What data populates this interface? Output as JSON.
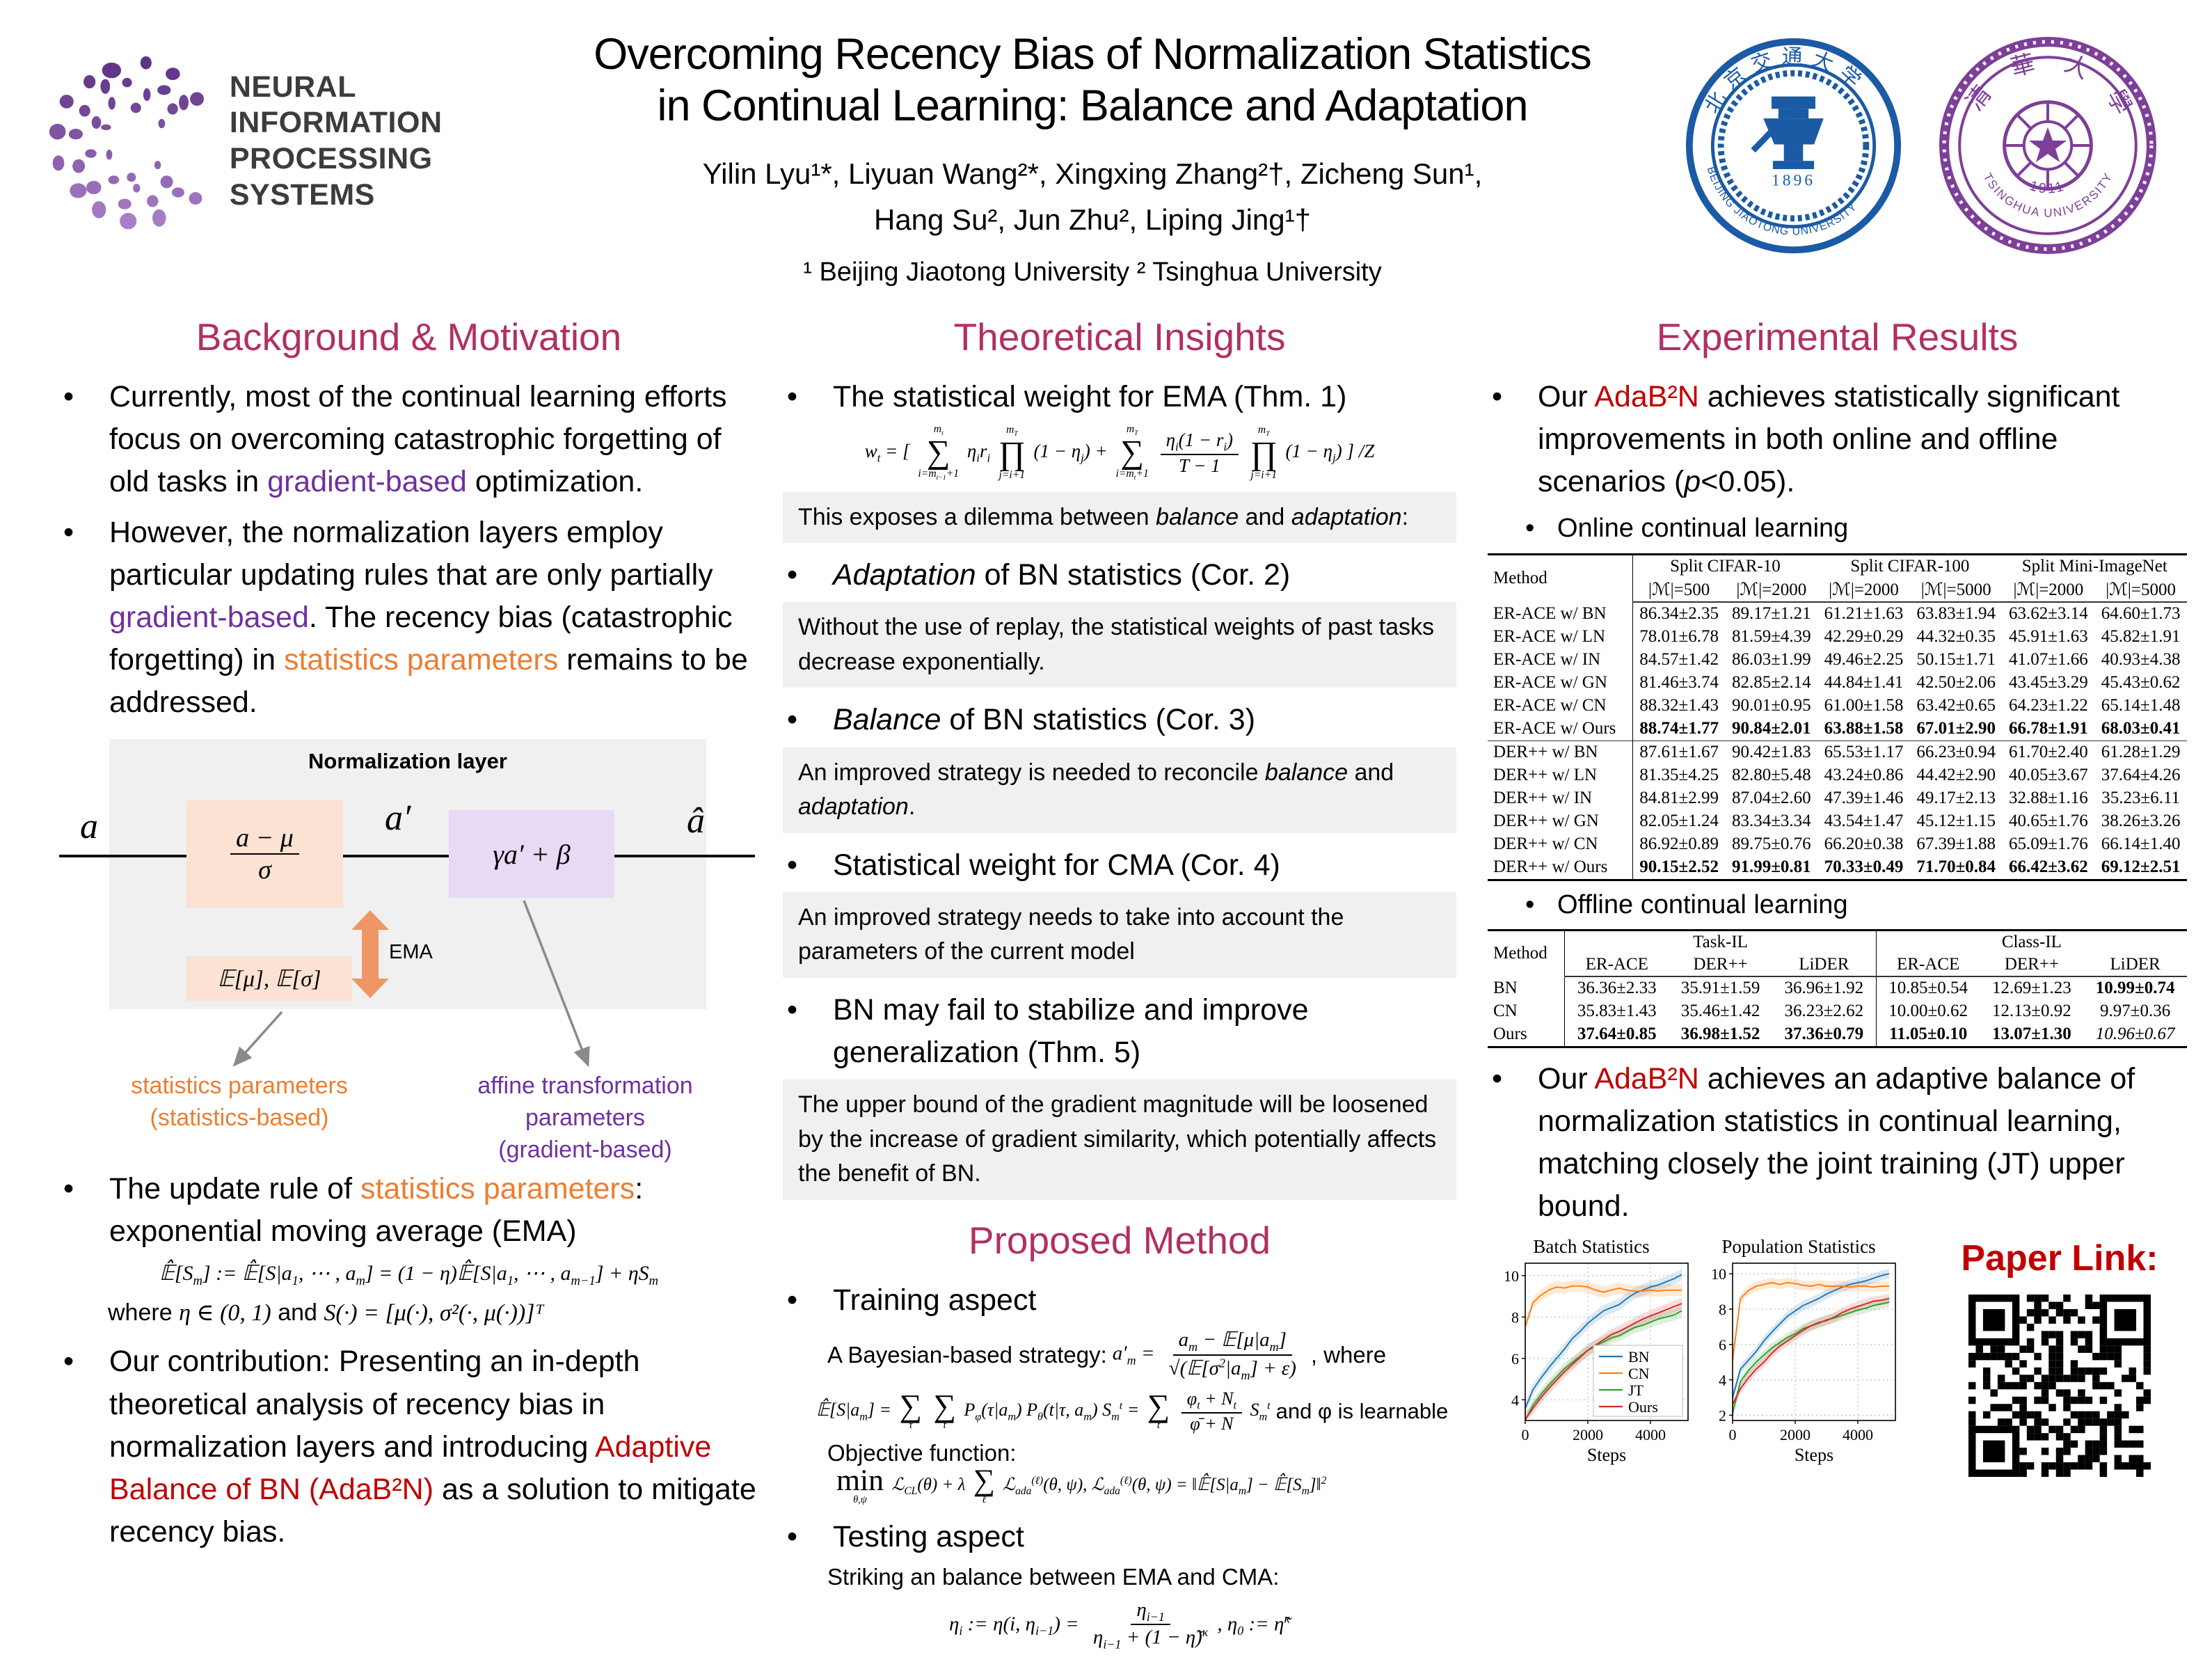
{
  "header": {
    "neurips": {
      "line1": "NEURAL INFORMATION",
      "line2": "PROCESSING SYSTEMS"
    },
    "title_line1": "Overcoming Recency Bias of Normalization Statistics",
    "title_line2": "in Continual Learning: Balance and Adaptation",
    "authors_line1": "Yilin Lyu¹*, Liyuan Wang²*, Xingxing Zhang²†, Zicheng Sun¹,",
    "authors_line2": "Hang Su², Jun Zhu², Liping Jing¹†",
    "affiliations": "¹ Beijing Jiaotong University   ² Tsinghua University",
    "seals": {
      "bjtu": {
        "zh": "北京交通大学",
        "en": "BEIJING  JIAOTONG  UNIVERSITY",
        "year": "1896"
      },
      "tsinghua": {
        "zh": "清 華 大 學",
        "en": "TSINGHUA  UNIVERSITY",
        "year": "~1911~"
      }
    }
  },
  "background": {
    "heading": "Background & Motivation",
    "bullet1": [
      {
        "t": "Currently, most of the continual learning efforts focus on overcoming catastrophic forgetting of old tasks in "
      },
      {
        "t": "gradient-based",
        "c": "purple"
      },
      {
        "t": " optimization."
      }
    ],
    "bullet2": [
      {
        "t": "However, the normalization layers employ particular updating rules that are only partially "
      },
      {
        "t": "gradient-based",
        "c": "purple"
      },
      {
        "t": ". The recency bias (catastrophic forgetting) in "
      },
      {
        "t": "statistics parameters",
        "c": "orange"
      },
      {
        "t": " remains to be addressed."
      }
    ],
    "diagram": {
      "title": "Normalization layer",
      "a": "a",
      "a_prime": "a′",
      "a_hat": "â",
      "norm_num": "a − μ",
      "norm_den": "σ",
      "affine": "γa′ + β",
      "ema": "EMA",
      "stats": "𝔼[μ], 𝔼[σ]",
      "label_stats_1": "statistics parameters",
      "label_stats_2": "(statistics-based)",
      "label_affine_1": "affine transformation parameters",
      "label_affine_2": "(gradient-based)"
    },
    "bullet3": [
      {
        "t": "The update rule of "
      },
      {
        "t": "statistics parameters",
        "c": "orange"
      },
      {
        "t": ": exponential moving average (EMA)"
      }
    ],
    "ema_formula": "𝔼̂[S_[m]] := 𝔼̂[S|a_[1], ⋯ , a_[m]] = (1 − η)𝔼̂[S|a_[1], ⋯ , a_[m−1]] + ηS_[m]",
    "where_line": [
      {
        "t": "where  "
      },
      {
        "t": "η ∈ (0, 1)",
        "m": true
      },
      {
        "t": "  and  "
      },
      {
        "t": "S(·) = [μ(·), σ²(·, μ(·))]ᵀ",
        "m": true
      }
    ],
    "bullet4": [
      {
        "t": "Our contribution: Presenting an in-depth theoretical analysis of recency bias in normalization layers and introducing "
      },
      {
        "t": "Adaptive Balance of BN (AdaB²N)",
        "c": "red"
      },
      {
        "t": " as a solution to mitigate recency bias."
      }
    ]
  },
  "theory": {
    "heading": "Theoretical Insights",
    "b1": [
      {
        "t": "The statistical weight for EMA (Thm. 1)"
      }
    ],
    "thm1": "w_[t] = [ \\op{∑}{i=m_[t−1]+1}{m_[t]} η_[i]r_[i] \\op{∏}{j=i+1}{m_[T]} (1 − η_[j]) + \\op{∑}{i=m_[t]+1}{m_[T]} \\frac{η_[i](1 − r_[i])}{T − 1} \\op{∏}{j=i+1}{m_[T]} (1 − η_[j]) ] /Z",
    "box1": [
      {
        "t": "This exposes a dilemma between "
      },
      {
        "t": "balance",
        "i": true
      },
      {
        "t": " and "
      },
      {
        "t": "adaptation",
        "i": true
      },
      {
        "t": ":"
      }
    ],
    "b2": [
      {
        "t": "Adaptation",
        "i": true
      },
      {
        "t": " of BN statistics (Cor. 2)"
      }
    ],
    "box2": [
      {
        "t": "Without the use of replay, the statistical weights of past tasks decrease exponentially."
      }
    ],
    "b3": [
      {
        "t": "Balance",
        "i": true
      },
      {
        "t": " of BN statistics (Cor. 3)"
      }
    ],
    "box3": [
      {
        "t": "An improved strategy is needed to reconcile "
      },
      {
        "t": "balance",
        "i": true
      },
      {
        "t": " and "
      },
      {
        "t": "adaptation",
        "i": true
      },
      {
        "t": "."
      }
    ],
    "b4": [
      {
        "t": "Statistical weight for CMA (Cor. 4)"
      }
    ],
    "box4": [
      {
        "t": "An improved strategy needs to take into account the parameters of the current model"
      }
    ],
    "b5": [
      {
        "t": "BN may fail to stabilize and improve generalization (Thm. 5)"
      }
    ],
    "box5": [
      {
        "t": "The upper bound of the gradient magnitude will be loosened by the increase of gradient similarity, which potentially affects the benefit of BN."
      }
    ]
  },
  "method": {
    "heading": "Proposed Method",
    "b1": [
      {
        "t": "Training aspect"
      }
    ],
    "bayes_label": "A Bayesian-based strategy:",
    "bayes_formula": "a′_[m] = \\frac{a_[m] − 𝔼[μ|a_[m]]}{√(𝔼[σ^[2]|a_[m]] + ε)}",
    "bayes_suffix": ", where",
    "expect_formula": "𝔼̂[S|a_[m]] = \\op{∑}{τ}{} \\op{∑}{t}{} P_[φ](τ|a_[m]) P_[θ](t|τ, a_[m]) S_[m]^[t] = \\op{∑}{t}{} \\frac{φ_[t] + N_[t]}{φ̄ + N} S_[m]^[t]",
    "expect_suffix": "and φ is learnable",
    "objective_label": "Objective function:",
    "objective_formula": "\\op{min}{θ,ψ}{} ℒ_[CL](θ) + λ \\op{∑}{ℓ}{} ℒ_[ada]^[(ℓ)](θ, ψ),   ℒ_[ada]^[(ℓ)](θ, ψ) = ‖𝔼̂[S|a_[m]] − 𝔼̂[S_[m]]‖^[2]",
    "b2": [
      {
        "t": "Testing aspect"
      }
    ],
    "testing_label": "Striking an balance between EMA and CMA:",
    "testing_formula": "η_[i] := η(i, η_[i−1]) = \\frac{η_[i−1]}{η_[i−1] + (1 − η̃)^[κ]},    η_[0] := η̃^[κ]"
  },
  "experiments": {
    "heading": "Experimental Results",
    "b1": [
      {
        "t": "Our "
      },
      {
        "t": "AdaB²N",
        "c": "red"
      },
      {
        "t": " achieves statistically significant improvements in both online and offline scenarios ("
      },
      {
        "t": "p",
        "i": true
      },
      {
        "t": "<0.05)."
      }
    ],
    "sub1": "Online continual learning",
    "table1": {
      "col_method": "Method",
      "groups": [
        "Split CIFAR-10",
        "Split CIFAR-100",
        "Split Mini-ImageNet"
      ],
      "subheads": [
        "|ℳ|=500",
        "|ℳ|=2000",
        "|ℳ|=2000",
        "|ℳ|=5000",
        "|ℳ|=2000",
        "|ℳ|=5000"
      ],
      "rows": [
        {
          "method": "ER-ACE w/ BN",
          "vals": [
            "86.34±2.35",
            "89.17±1.21",
            "61.21±1.63",
            "63.83±1.94",
            "63.62±3.14",
            "64.60±1.73"
          ]
        },
        {
          "method": "ER-ACE w/ LN",
          "vals": [
            "78.01±6.78",
            "81.59±4.39",
            "42.29±0.29",
            "44.32±0.35",
            "45.91±1.63",
            "45.82±1.91"
          ]
        },
        {
          "method": "ER-ACE w/ IN",
          "vals": [
            "84.57±1.42",
            "86.03±1.99",
            "49.46±2.25",
            "50.15±1.71",
            "41.07±1.66",
            "40.93±4.38"
          ]
        },
        {
          "method": "ER-ACE w/ GN",
          "vals": [
            "81.46±3.74",
            "82.85±2.14",
            "44.84±1.41",
            "42.50±2.06",
            "43.45±3.29",
            "45.43±0.62"
          ]
        },
        {
          "method": "ER-ACE w/ CN",
          "vals": [
            "88.32±1.43",
            "90.01±0.95",
            "61.00±1.58",
            "63.42±0.65",
            "64.23±1.22",
            "65.14±1.48"
          ]
        },
        {
          "method": "ER-ACE w/ Ours",
          "bold": true,
          "vals": [
            "88.74±1.77",
            "90.84±2.01",
            "63.88±1.58",
            "67.01±2.90",
            "66.78±1.91",
            "68.03±0.41"
          ]
        },
        {
          "method": "DER++ w/ BN",
          "sep": true,
          "vals": [
            "87.61±1.67",
            "90.42±1.83",
            "65.53±1.17",
            "66.23±0.94",
            "61.70±2.40",
            "61.28±1.29"
          ]
        },
        {
          "method": "DER++ w/ LN",
          "vals": [
            "81.35±4.25",
            "82.80±5.48",
            "43.24±0.86",
            "44.42±2.90",
            "40.05±3.67",
            "37.64±4.26"
          ]
        },
        {
          "method": "DER++ w/ IN",
          "vals": [
            "84.81±2.99",
            "87.04±2.60",
            "47.39±1.46",
            "49.17±2.13",
            "32.88±1.16",
            "35.23±6.11"
          ]
        },
        {
          "method": "DER++ w/ GN",
          "vals": [
            "82.05±1.24",
            "83.34±3.34",
            "43.54±1.47",
            "45.12±1.15",
            "40.65±1.76",
            "38.26±3.26"
          ]
        },
        {
          "method": "DER++ w/ CN",
          "vals": [
            "86.92±0.89",
            "89.75±0.76",
            "66.20±0.38",
            "67.39±1.88",
            "65.09±1.76",
            "66.14±1.40"
          ]
        },
        {
          "method": "DER++ w/ Ours",
          "bold": true,
          "vals": [
            "90.15±2.52",
            "91.99±0.81",
            "70.33±0.49",
            "71.70±0.84",
            "66.42±3.62",
            "69.12±2.51"
          ]
        }
      ]
    },
    "sub2": "Offline continual learning",
    "table2": {
      "col_method": "Method",
      "groups": [
        "Task-IL",
        "Class-IL"
      ],
      "subheads": [
        "ER-ACE",
        "DER++",
        "LiDER",
        "ER-ACE",
        "DER++",
        "LiDER"
      ],
      "rows": [
        {
          "method": "BN",
          "vals": [
            "36.36±2.33",
            "35.91±1.59",
            "36.96±1.92",
            "10.85±0.54",
            "12.69±1.23",
            {
              "v": "10.99±0.74",
              "b": true
            }
          ]
        },
        {
          "method": "CN",
          "vals": [
            "35.83±1.43",
            "35.46±1.42",
            "36.23±2.62",
            "10.00±0.62",
            "12.13±0.92",
            "9.97±0.36"
          ]
        },
        {
          "method": "Ours",
          "vals": [
            {
              "v": "37.64±0.85",
              "b": true
            },
            {
              "v": "36.98±1.52",
              "b": true
            },
            {
              "v": "37.36±0.79",
              "b": true
            },
            {
              "v": "11.05±0.10",
              "b": true
            },
            {
              "v": "13.07±1.30",
              "b": true
            },
            {
              "v": "10.96±0.67",
              "i": true
            }
          ]
        }
      ]
    },
    "b2": [
      {
        "t": "Our "
      },
      {
        "t": "AdaB²N",
        "c": "red"
      },
      {
        "t": " achieves an adaptive balance of normalization statistics in continual learning, matching closely the joint training (JT) upper bound."
      }
    ],
    "paper_link": "Paper Link:"
  },
  "chart_data": [
    {
      "type": "line",
      "title": "Batch Statistics",
      "xlabel": "Steps",
      "x": [
        0,
        250,
        500,
        750,
        1000,
        1250,
        1500,
        1750,
        2000,
        2250,
        2500,
        2750,
        3000,
        3250,
        3500,
        3750,
        4000,
        4250,
        4500,
        4750,
        5000
      ],
      "series": [
        {
          "name": "BN",
          "color": "#1f77b4",
          "values": [
            3.6,
            4.5,
            5.05,
            5.55,
            6.0,
            6.45,
            6.95,
            7.3,
            7.7,
            8.0,
            8.3,
            8.45,
            8.6,
            8.9,
            9.15,
            9.3,
            9.45,
            9.55,
            9.7,
            9.85,
            10.05
          ]
        },
        {
          "name": "CN",
          "color": "#ff7f0e",
          "values": [
            7.55,
            8.7,
            9.05,
            9.3,
            9.45,
            9.4,
            9.5,
            9.5,
            9.45,
            9.3,
            9.2,
            9.3,
            9.4,
            9.3,
            9.25,
            9.25,
            9.3,
            9.25,
            9.3,
            9.3,
            9.3
          ]
        },
        {
          "name": "JT",
          "color": "#2ca02c",
          "values": [
            3.0,
            3.75,
            4.25,
            4.7,
            5.1,
            5.5,
            5.8,
            6.1,
            6.4,
            6.6,
            6.8,
            7.0,
            7.1,
            7.3,
            7.5,
            7.6,
            7.75,
            7.9,
            8.0,
            8.1,
            8.3
          ]
        },
        {
          "name": "Ours",
          "color": "#d62728",
          "values": [
            3.05,
            3.6,
            4.1,
            4.55,
            4.95,
            5.35,
            5.7,
            6.05,
            6.4,
            6.65,
            6.9,
            7.15,
            7.3,
            7.5,
            7.7,
            7.9,
            8.05,
            8.2,
            8.35,
            8.5,
            8.65
          ]
        }
      ],
      "ylim": [
        3.0,
        10.6
      ],
      "yticks": [
        4,
        6,
        8,
        10
      ],
      "xticks": [
        0,
        2000,
        4000
      ],
      "grid": true,
      "legend": true,
      "legend_position": "lower right"
    },
    {
      "type": "line",
      "title": "Population Statistics",
      "xlabel": "Steps",
      "x": [
        0,
        250,
        500,
        750,
        1000,
        1250,
        1500,
        1750,
        2000,
        2250,
        2500,
        2750,
        3000,
        3250,
        3500,
        3750,
        4000,
        4250,
        4500,
        4750,
        5000
      ],
      "series": [
        {
          "name": "BN",
          "color": "#1f77b4",
          "values": [
            3.0,
            4.6,
            5.1,
            5.6,
            6.2,
            6.7,
            7.15,
            7.6,
            7.9,
            8.2,
            8.4,
            8.6,
            8.85,
            9.05,
            9.25,
            9.4,
            9.5,
            9.6,
            9.75,
            9.9,
            10.0
          ]
        },
        {
          "name": "CN",
          "color": "#ff7f0e",
          "values": [
            5.1,
            8.6,
            9.05,
            9.3,
            9.4,
            9.5,
            9.4,
            9.5,
            9.45,
            9.35,
            9.3,
            9.4,
            9.3,
            9.3,
            9.3,
            9.25,
            9.3,
            9.3,
            9.25,
            9.3,
            9.3
          ]
        },
        {
          "name": "JT",
          "color": "#2ca02c",
          "values": [
            2.1,
            3.9,
            4.5,
            5.0,
            5.4,
            5.8,
            6.1,
            6.4,
            6.6,
            6.9,
            7.05,
            7.2,
            7.4,
            7.5,
            7.65,
            7.8,
            7.95,
            8.05,
            8.2,
            8.3,
            8.4
          ]
        },
        {
          "name": "Ours",
          "color": "#d62728",
          "values": [
            2.6,
            3.5,
            4.1,
            4.6,
            5.0,
            5.5,
            5.9,
            6.2,
            6.5,
            6.8,
            7.05,
            7.25,
            7.35,
            7.55,
            7.8,
            8.0,
            8.15,
            8.3,
            8.45,
            8.5,
            8.6
          ]
        }
      ],
      "ylim": [
        1.7,
        10.6
      ],
      "yticks": [
        2,
        4,
        6,
        8,
        10
      ],
      "xticks": [
        0,
        2000,
        4000
      ],
      "grid": true,
      "legend": false
    }
  ]
}
